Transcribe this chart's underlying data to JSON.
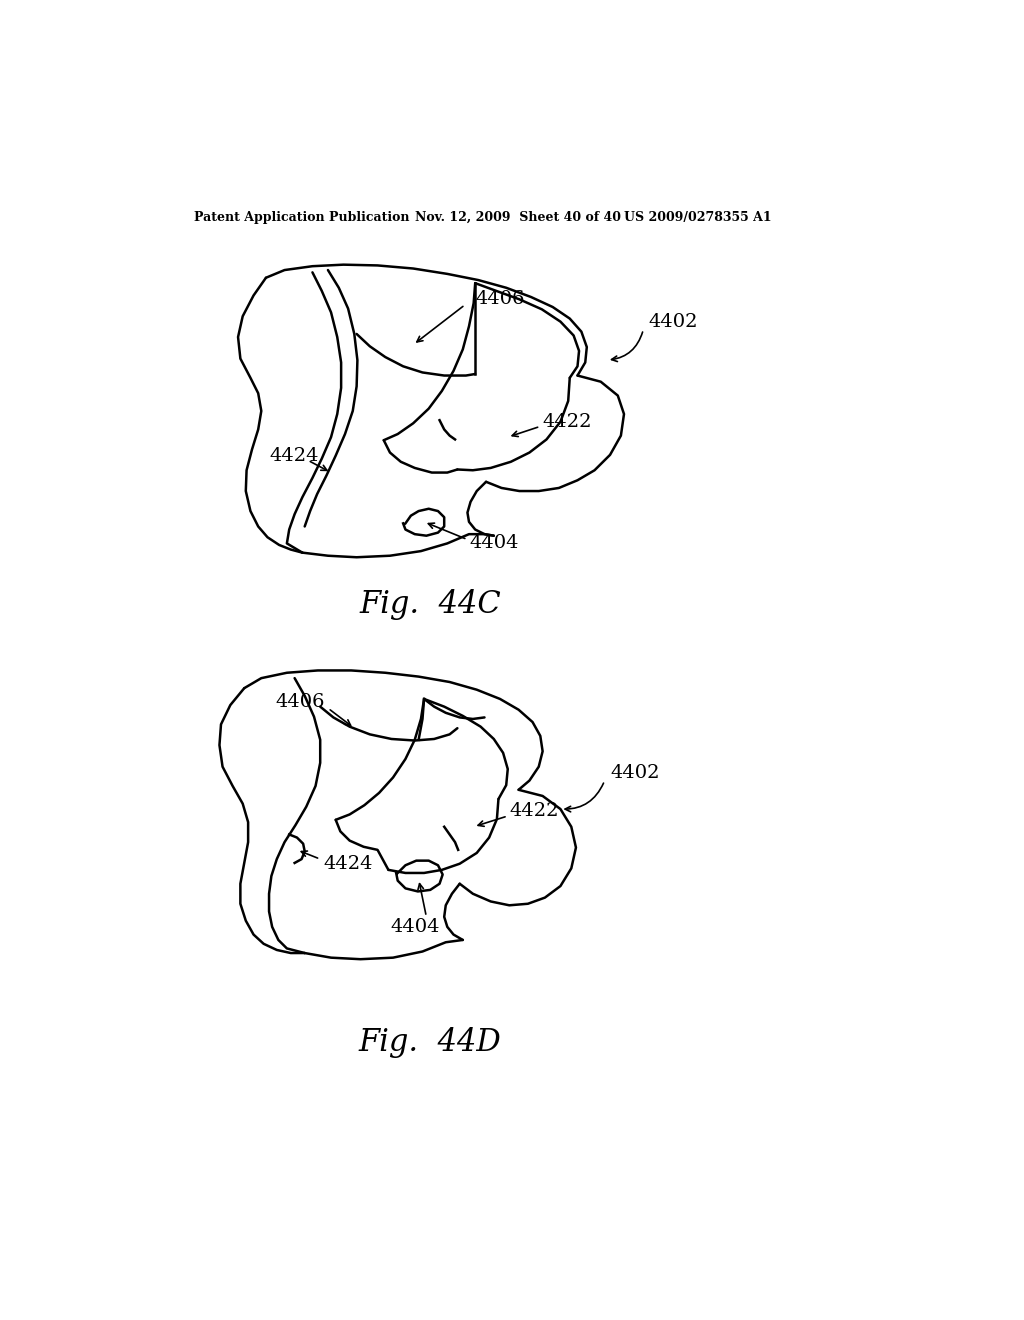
{
  "bg_color": "#ffffff",
  "header_left": "Patent Application Publication",
  "header_mid": "Nov. 12, 2009  Sheet 40 of 40",
  "header_right": "US 2009/0278355 A1",
  "fig1_label": "Fig.  44C",
  "fig2_label": "Fig.  44D"
}
